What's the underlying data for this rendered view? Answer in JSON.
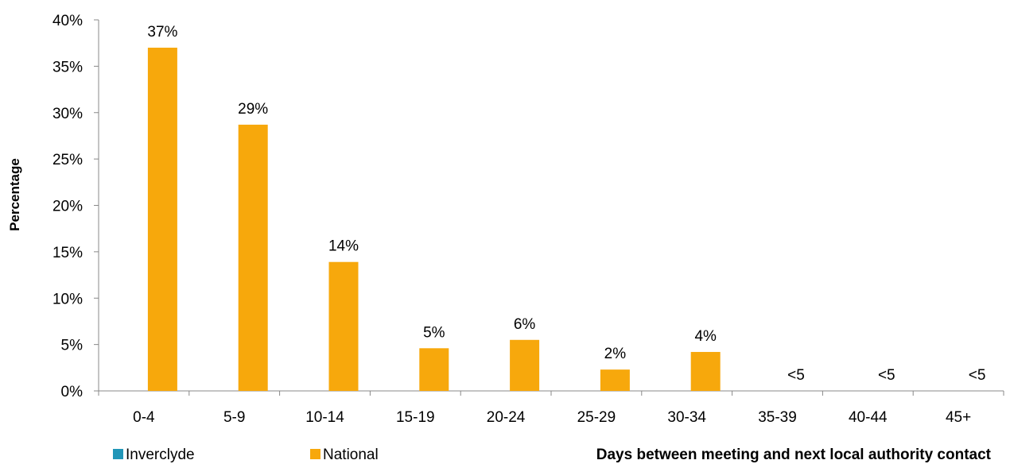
{
  "chart_data": {
    "type": "bar",
    "categories": [
      "0-4",
      "5-9",
      "10-14",
      "15-19",
      "20-24",
      "25-29",
      "30-34",
      "35-39",
      "40-44",
      "45+"
    ],
    "series": [
      {
        "name": "Inverclyde",
        "color": "#2196b8",
        "values": [
          null,
          null,
          null,
          null,
          null,
          null,
          null,
          null,
          null,
          null
        ]
      },
      {
        "name": "National",
        "color": "#f7a80c",
        "values": [
          37,
          28.7,
          13.9,
          4.6,
          5.5,
          2.3,
          4.2,
          0,
          0,
          0
        ]
      }
    ],
    "data_labels": [
      "37%",
      "29%",
      "14%",
      "5%",
      "6%",
      "2%",
      "4%",
      "<5",
      "<5",
      "<5"
    ],
    "y_ticks": [
      "0%",
      "5%",
      "10%",
      "15%",
      "20%",
      "25%",
      "30%",
      "35%",
      "40%"
    ],
    "ylim": [
      0,
      40
    ],
    "ylabel": "Percentage",
    "xlabel": "Days between meeting and next local authority contact",
    "legend_position": "bottom-left",
    "grid": false
  }
}
